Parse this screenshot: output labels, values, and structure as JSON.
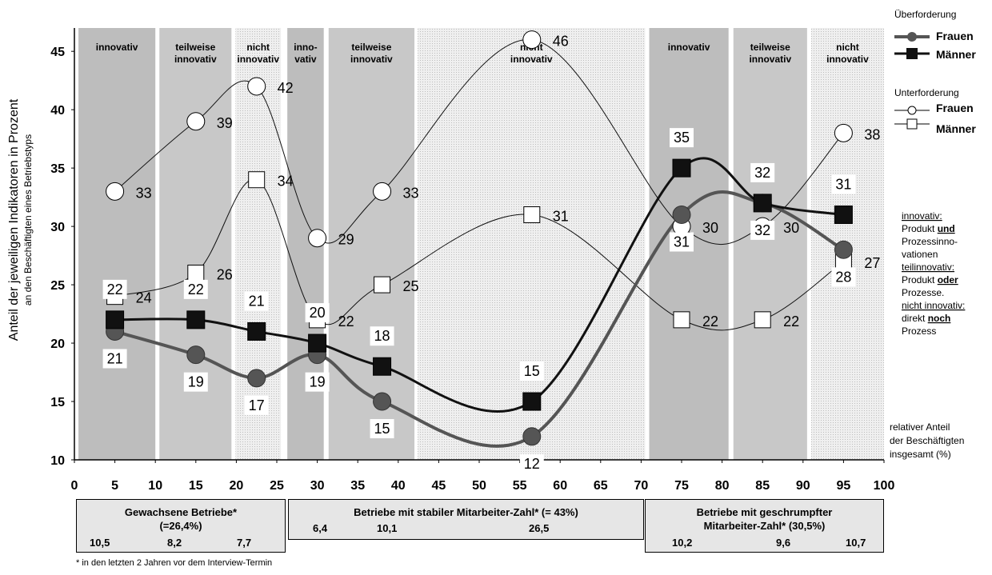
{
  "chart_data": {
    "type": "line",
    "ylabel": "Anteil der jeweiligen Indikatoren in Prozent",
    "ylabel_sub": "an den Beschäftigten eines Betriebstyps",
    "xlabel": "relativer Anteil der Beschäftigten insgesamt (%)",
    "xlabel_lines": [
      "relativer Anteil",
      "der Beschäftigten",
      "insgesamt (%)"
    ],
    "xlim": [
      0,
      100
    ],
    "ylim": [
      10,
      47
    ],
    "xticks": [
      "0",
      "5",
      "10",
      "15",
      "20",
      "25",
      "30",
      "35",
      "40",
      "45",
      "50",
      "55",
      "60",
      "65",
      "70",
      "75",
      "80",
      "85",
      "90",
      "95",
      "100"
    ],
    "yticks": [
      "10",
      "15",
      "20",
      "25",
      "30",
      "35",
      "40",
      "45"
    ],
    "bands": [
      {
        "x0": 0.5,
        "x1": 10,
        "label": [
          "innovativ"
        ],
        "shade": "#bdbdbd"
      },
      {
        "x0": 10.5,
        "x1": 19.4,
        "label": [
          "teilweise",
          "innovativ"
        ],
        "shade": "#c8c8c8"
      },
      {
        "x0": 19.9,
        "x1": 25.5,
        "label": [
          "nicht",
          "innovativ"
        ],
        "shade": "#e8e8e8"
      },
      {
        "x0": 26.3,
        "x1": 30.8,
        "label": [
          "inno-",
          "vativ"
        ],
        "shade": "#bdbdbd"
      },
      {
        "x0": 31.4,
        "x1": 42.0,
        "label": [
          "teilweise",
          "innovativ"
        ],
        "shade": "#c8c8c8"
      },
      {
        "x0": 42.4,
        "x1": 70.5,
        "label": [
          "nicht",
          "innovativ"
        ],
        "shade": "#e8e8e8"
      },
      {
        "x0": 71.0,
        "x1": 80.8,
        "label": [
          "innovativ"
        ],
        "shade": "#bdbdbd"
      },
      {
        "x0": 81.4,
        "x1": 90.5,
        "label": [
          "teilweise",
          "innovativ"
        ],
        "shade": "#c8c8c8"
      },
      {
        "x0": 91.0,
        "x1": 100,
        "label": [
          "nicht",
          "innovativ"
        ],
        "shade": "#e8e8e8"
      }
    ],
    "series": [
      {
        "name": "Frauen",
        "group": "Überforderung",
        "marker": "circle-filled",
        "color": "#555555",
        "width": 4,
        "x": [
          5,
          15,
          22.5,
          30,
          38,
          56.5,
          75,
          85,
          95
        ],
        "values": [
          21,
          19,
          17,
          19,
          15,
          12,
          31,
          32,
          28
        ],
        "labels": [
          "21",
          "19",
          "17",
          "19",
          "15",
          "12",
          "31",
          "32",
          "28"
        ]
      },
      {
        "name": "Männer",
        "group": "Überforderung",
        "marker": "square-filled",
        "color": "#111111",
        "width": 3,
        "x": [
          5,
          15,
          22.5,
          30,
          38,
          56.5,
          75,
          85,
          95
        ],
        "values": [
          22,
          22,
          21,
          20,
          18,
          15,
          35,
          32,
          31
        ],
        "labels": [
          "22",
          "22",
          "21",
          "20",
          "18",
          "15",
          "35",
          "32",
          "31"
        ]
      },
      {
        "name": "Frauen",
        "group": "Unterforderung",
        "marker": "circle-open",
        "color": "#111111",
        "width": 1,
        "x": [
          5,
          15,
          22.5,
          30,
          38,
          56.5,
          75,
          85,
          95
        ],
        "values": [
          33,
          39,
          42,
          29,
          33,
          46,
          30,
          30,
          38
        ],
        "labels": [
          "33",
          "39",
          "42",
          "29",
          "33",
          "46",
          "30",
          "30",
          "38"
        ]
      },
      {
        "name": "Männer",
        "group": "Unterforderung",
        "marker": "square-open",
        "color": "#111111",
        "width": 1,
        "x": [
          5,
          15,
          22.5,
          30,
          38,
          56.5,
          75,
          85,
          95
        ],
        "values": [
          24,
          26,
          34,
          22,
          25,
          31,
          22,
          22,
          27
        ],
        "labels": [
          "24",
          "26",
          "34",
          "22",
          "25",
          "31",
          "22",
          "22",
          "27"
        ]
      }
    ],
    "legend": {
      "group1": "Überforderung",
      "group2": "Unterforderung",
      "frauen": "Frauen",
      "maenner": "Männer"
    },
    "definitions": {
      "innovativ_title": "innovativ:",
      "innovativ_l1a": "Produkt ",
      "innovativ_l1b": "und",
      "innovativ_l2": "Prozessinno-",
      "innovativ_l3": "vationen",
      "teil_title": "teilinnovativ:",
      "teil_l1a": "Produkt ",
      "teil_l1b": "oder",
      "teil_l2": "Prozesse.",
      "nicht_title": "nicht innovativ:",
      "nicht_l1a": "direkt ",
      "nicht_l1b": "noch",
      "nicht_l2": "Prozess"
    }
  },
  "groups": [
    {
      "title1": "Gewachsene Betriebe*",
      "title2": "(=26,4%)",
      "numbers": [
        "10,5",
        "8,2",
        "7,7"
      ]
    },
    {
      "title1": "Betriebe mit stabiler Mitarbeiter-Zahl* (= 43%)",
      "title2": "",
      "numbers": [
        "6,4",
        "10,1",
        "26,5"
      ]
    },
    {
      "title1": "Betriebe mit geschrumpfter",
      "title2": "Mitarbeiter-Zahl* (30,5%)",
      "numbers": [
        "10,2",
        "9,6",
        "10,7"
      ]
    }
  ],
  "footnote": "* in den letzten 2 Jahren vor dem Interview-Termin"
}
